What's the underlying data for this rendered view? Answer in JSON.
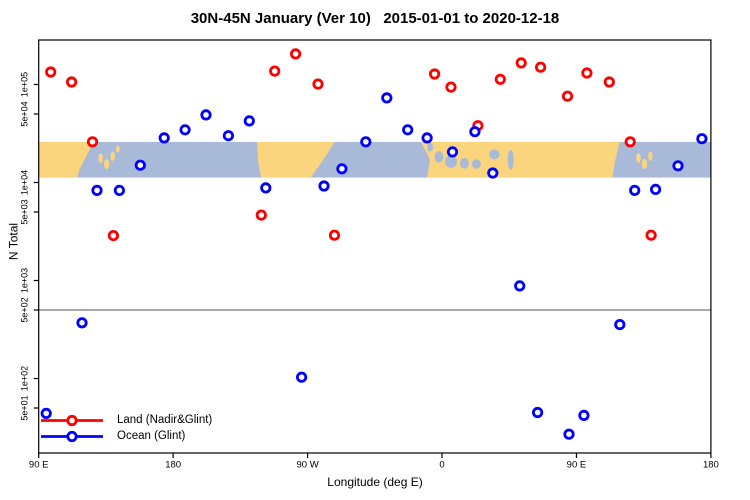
{
  "chart_data": {
    "type": "scatter",
    "title": "30N-45N January (Ver 10)   2015-01-01 to 2020-12-18",
    "xlabel": "Longitude (deg E)",
    "ylabel": "N Total",
    "background": "#ffffff",
    "axis_color": "#000000",
    "grid": false,
    "x_axis": {
      "min": 90,
      "max": 540,
      "unit": "deg E wrapped eastward from 90E",
      "ticks": [
        {
          "value": 90,
          "label": "90 E"
        },
        {
          "value": 180,
          "label": "180"
        },
        {
          "value": 270,
          "label": "90 W"
        },
        {
          "value": 360,
          "label": "0"
        },
        {
          "value": 450,
          "label": "90 E"
        },
        {
          "value": 540,
          "label": "180"
        }
      ]
    },
    "y_axis": {
      "scale": "log",
      "min": 15,
      "max": 230000,
      "ticks": [
        {
          "value": 100000,
          "label": "1e+05"
        },
        {
          "value": 50000,
          "label": "5e+04"
        },
        {
          "value": 10000,
          "label": "1e+04"
        },
        {
          "value": 5000,
          "label": "5e+03"
        },
        {
          "value": 1000,
          "label": "1e+03"
        },
        {
          "value": 500,
          "label": "5e+02"
        },
        {
          "value": 100,
          "label": "1e+02"
        },
        {
          "value": 50,
          "label": "5e+01"
        }
      ]
    },
    "reference_line_y": 500,
    "legend": {
      "position": "bottom-left",
      "entries": [
        {
          "label": "Land (Nadir&Glint)",
          "color": "#ff0000"
        },
        {
          "label": "Ocean (Glint)",
          "color": "#0000ff"
        }
      ]
    },
    "map_band": {
      "description": "world map strip 30N-45N drawn across plot",
      "top_value": 26000,
      "bottom_value": 11200,
      "ocean_color": "#a9bad8",
      "land_color": "#fbd57e",
      "land_polygons": [
        [
          [
            90,
            0
          ],
          [
            127,
            0
          ],
          [
            123,
            0.3
          ],
          [
            120,
            0.55
          ],
          [
            117,
            0.8
          ],
          [
            116,
            1
          ],
          [
            90,
            1
          ]
        ],
        [
          [
            236,
            0
          ],
          [
            288,
            0
          ],
          [
            283,
            0.35
          ],
          [
            272,
            1
          ],
          [
            239,
            1
          ],
          [
            237,
            0.6
          ]
        ],
        [
          [
            346,
            0
          ],
          [
            479,
            0
          ],
          [
            476,
            0.5
          ],
          [
            474,
            1
          ],
          [
            350,
            1
          ],
          [
            352,
            0.5
          ]
        ]
      ],
      "island_blobs": [
        [
          122,
          0.1,
          2,
          0.09
        ],
        [
          131.5,
          0.45,
          1.5,
          0.14
        ],
        [
          135.5,
          0.62,
          1.8,
          0.14
        ],
        [
          139.5,
          0.4,
          1.5,
          0.13
        ],
        [
          143,
          0.2,
          1.2,
          0.1
        ],
        [
          491.5,
          0.45,
          1.5,
          0.14
        ],
        [
          495.5,
          0.62,
          1.8,
          0.14
        ],
        [
          499.5,
          0.4,
          1.5,
          0.13
        ]
      ],
      "sea_blobs": [
        [
          352,
          0.15,
          2,
          0.12
        ],
        [
          358,
          0.42,
          3,
          0.16
        ],
        [
          366,
          0.55,
          4,
          0.18
        ],
        [
          375,
          0.6,
          3,
          0.15
        ],
        [
          383,
          0.62,
          3,
          0.13
        ],
        [
          395,
          0.35,
          3.5,
          0.14
        ],
        [
          406,
          0.5,
          2,
          0.28
        ]
      ]
    },
    "series": [
      {
        "name": "Land (Nadir&Glint)",
        "color": "#ff0000",
        "points": [
          [
            98,
            134000
          ],
          [
            112,
            106000
          ],
          [
            126,
            26000
          ],
          [
            248,
            137000
          ],
          [
            262,
            205000
          ],
          [
            277,
            101000
          ],
          [
            355,
            128000
          ],
          [
            366,
            94000
          ],
          [
            384,
            38000
          ],
          [
            399,
            113000
          ],
          [
            413,
            166000
          ],
          [
            426,
            150000
          ],
          [
            444,
            76000
          ],
          [
            457,
            131000
          ],
          [
            472,
            106000
          ],
          [
            486,
            26000
          ],
          [
            239,
            4650
          ],
          [
            140,
            2870
          ],
          [
            288,
            2900
          ],
          [
            500,
            2900
          ]
        ]
      },
      {
        "name": "Ocean (Glint)",
        "color": "#0000ff",
        "points": [
          [
            129,
            8300
          ],
          [
            144,
            8300
          ],
          [
            158,
            15000
          ],
          [
            174,
            28500
          ],
          [
            188,
            34500
          ],
          [
            202,
            49000
          ],
          [
            217,
            30000
          ],
          [
            231,
            42500
          ],
          [
            242,
            8800
          ],
          [
            281,
            9200
          ],
          [
            293,
            13800
          ],
          [
            309,
            26000
          ],
          [
            323,
            73000
          ],
          [
            337,
            34500
          ],
          [
            350,
            28500
          ],
          [
            367,
            20500
          ],
          [
            382,
            33000
          ],
          [
            394,
            12500
          ],
          [
            489,
            8300
          ],
          [
            503,
            8500
          ],
          [
            518,
            14800
          ],
          [
            534,
            28000
          ],
          [
            119,
            370
          ],
          [
            412,
            880
          ],
          [
            479,
            355
          ],
          [
            266,
            103
          ],
          [
            424,
            45
          ],
          [
            455,
            42
          ],
          [
            445,
            27
          ],
          [
            95,
            44
          ]
        ]
      }
    ]
  }
}
